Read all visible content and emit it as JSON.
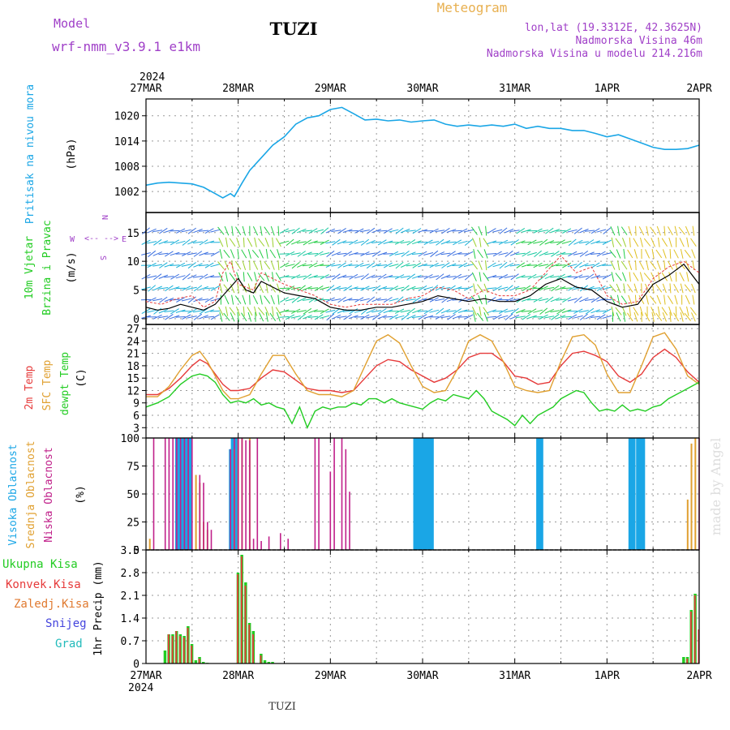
{
  "header": {
    "model_label": "Model",
    "model_name": "wrf-nmm_v3.9.1  e1km",
    "station": "TUZI",
    "meteogram_label": "Meteogram",
    "lonlat": "lon,lat (19.3312E, 42.3625N)",
    "elevation": "Nadmorska Visina 46m",
    "model_elevation": "Nadmorska Visina u modelu 214.216m",
    "footer_station": "TUZI",
    "credit": "made by Angel"
  },
  "colors": {
    "pressure": "#1aa6e6",
    "temp2m": "#e63a3a",
    "sfc_temp": "#e0a030",
    "dewpoint": "#22cc22",
    "cloud_high": "#1aa6e6",
    "cloud_mid": "#e0a030",
    "cloud_low": "#c0208a",
    "precip_total": "#22cc22",
    "precip_conv": "#e63a3a",
    "precip_frozen": "#e07a30",
    "snow": "#4444dd",
    "hail": "#22bbbb",
    "purple_text": "#a040c8",
    "orange_text": "#e8b050"
  },
  "time_axis": {
    "top_year": "2024",
    "bottom_year": "2024",
    "days": [
      "27MAR",
      "28MAR",
      "29MAR",
      "30MAR",
      "31MAR",
      "1APR",
      "2APR"
    ]
  },
  "chart_data": [
    {
      "type": "line",
      "ylabel_lines": [
        "Pritisak na nivou mora",
        "(hPa)"
      ],
      "ylim": [
        997,
        1024
      ],
      "yticks": [
        1002,
        1008,
        1014,
        1020
      ],
      "grid": true,
      "series": [
        {
          "x": [
            0,
            3,
            6,
            9,
            12,
            15,
            18,
            20,
            22,
            23,
            25,
            27,
            30,
            33,
            36,
            39,
            42,
            45,
            48,
            51,
            54,
            57,
            60,
            63,
            66,
            69,
            72,
            75,
            78,
            81,
            84,
            87,
            90,
            93,
            96,
            99,
            102,
            105,
            108,
            111,
            114,
            117,
            120,
            123,
            126,
            129,
            132,
            135,
            138,
            141,
            144
          ],
          "values": [
            1003.5,
            1004,
            1004.2,
            1004,
            1003.8,
            1003,
            1001.5,
            1000.5,
            1001.5,
            1000.8,
            1004,
            1007,
            1010,
            1013,
            1015,
            1018,
            1019.5,
            1020,
            1021.5,
            1022,
            1020.5,
            1019,
            1019.2,
            1018.8,
            1019,
            1018.5,
            1018.8,
            1019,
            1018,
            1017.5,
            1017.8,
            1017.5,
            1017.8,
            1017.5,
            1018,
            1017,
            1017.5,
            1017,
            1017,
            1016.5,
            1016.5,
            1015.8,
            1015,
            1015.5,
            1014.5,
            1013.5,
            1012.5,
            1012,
            1012,
            1012.2,
            1013
          ]
        }
      ]
    },
    {
      "type": "line",
      "ylabel_lines": [
        "10m Vjetar",
        "Brzina i Pravac",
        "(m/s)"
      ],
      "compass_labels": [
        "N",
        "W",
        "E",
        "S",
        "<--",
        "-->"
      ],
      "ylim": [
        -1,
        18.5
      ],
      "yticks": [
        0,
        5,
        10,
        15
      ],
      "grid": true,
      "series": [
        {
          "x": [
            0,
            3,
            6,
            9,
            12,
            15,
            18,
            20,
            22,
            24,
            26,
            28,
            30,
            33,
            36,
            40,
            44,
            48,
            52,
            56,
            60,
            64,
            68,
            72,
            76,
            80,
            84,
            88,
            92,
            96,
            100,
            104,
            108,
            112,
            116,
            120,
            124,
            128,
            132,
            136,
            140,
            144
          ],
          "values": [
            2,
            1.5,
            1.8,
            2.5,
            2,
            1.5,
            2.5,
            4,
            5.5,
            7,
            5,
            4.5,
            6.5,
            5.5,
            4.5,
            4,
            3.5,
            2,
            1.5,
            1.5,
            2,
            2,
            2.5,
            3,
            4,
            3.5,
            3,
            3.5,
            3,
            3,
            4,
            6,
            7,
            5.5,
            5,
            3,
            2,
            2.5,
            6,
            7.5,
            9.5,
            6
          ]
        },
        {
          "x": [
            0,
            4,
            8,
            12,
            15,
            18,
            20,
            22,
            24,
            26,
            28,
            30,
            33,
            36,
            40,
            44,
            48,
            52,
            56,
            60,
            64,
            68,
            72,
            76,
            80,
            84,
            88,
            92,
            96,
            100,
            104,
            108,
            112,
            116,
            120,
            124,
            128,
            132,
            136,
            140,
            144
          ],
          "values": [
            3,
            2.5,
            3.5,
            4,
            2,
            3,
            8,
            10,
            6,
            5.5,
            5,
            8,
            7,
            6,
            5,
            4,
            2.5,
            2,
            2.5,
            2.5,
            2.5,
            3.5,
            4,
            5.5,
            5,
            3.5,
            5,
            4,
            4,
            5,
            8,
            11,
            8,
            9,
            4,
            2.5,
            3,
            7,
            9,
            10,
            8
          ]
        }
      ]
    },
    {
      "type": "line",
      "ylabel_lines": [
        "2m Temp",
        "SFC Temp",
        "dewpt Temp",
        "(C)"
      ],
      "ylim": [
        0.5,
        28
      ],
      "yticks": [
        3,
        6,
        9,
        12,
        15,
        18,
        21,
        24,
        27
      ],
      "grid": true,
      "series": [
        {
          "name": "2m Temp",
          "x": [
            0,
            3,
            6,
            9,
            12,
            14,
            16,
            18,
            20,
            22,
            24,
            27,
            30,
            33,
            36,
            39,
            42,
            45,
            48,
            51,
            54,
            57,
            60,
            63,
            66,
            69,
            72,
            75,
            78,
            81,
            84,
            87,
            90,
            93,
            96,
            99,
            102,
            105,
            108,
            111,
            114,
            117,
            120,
            123,
            126,
            129,
            132,
            135,
            138,
            141,
            144
          ],
          "values": [
            11,
            11,
            12.5,
            15,
            18,
            19.5,
            18.5,
            16,
            13.5,
            12,
            12,
            12.5,
            15,
            17,
            16.5,
            14.5,
            12.5,
            12,
            12,
            11.5,
            12,
            15,
            18,
            19.5,
            19,
            17,
            15.5,
            14,
            15,
            17,
            20,
            21,
            21,
            19,
            15.5,
            15,
            13.5,
            14,
            18,
            21,
            21.5,
            20.5,
            19,
            15.5,
            14,
            16,
            20,
            22,
            20,
            16.5,
            14
          ]
        },
        {
          "name": "SFC Temp",
          "x": [
            0,
            3,
            6,
            9,
            12,
            14,
            16,
            18,
            20,
            22,
            24,
            27,
            30,
            33,
            36,
            39,
            42,
            45,
            48,
            51,
            54,
            57,
            60,
            63,
            66,
            69,
            72,
            75,
            78,
            81,
            84,
            87,
            90,
            93,
            96,
            99,
            102,
            105,
            108,
            111,
            114,
            117,
            120,
            123,
            126,
            129,
            132,
            135,
            138,
            141,
            144
          ],
          "values": [
            10.5,
            10.5,
            13,
            17,
            20.5,
            21.5,
            19,
            15.5,
            12,
            10,
            10,
            11,
            16,
            20.5,
            20.5,
            16,
            12,
            11,
            11,
            10.5,
            12,
            18,
            24,
            25.5,
            23.5,
            18,
            13,
            11.5,
            12,
            17,
            24,
            25.5,
            24,
            19,
            13,
            12,
            11.5,
            12,
            19,
            25,
            25.5,
            23,
            16,
            11.5,
            11.5,
            18,
            25,
            26,
            22,
            15.5,
            13.5
          ]
        },
        {
          "name": "dewpt Temp",
          "x": [
            0,
            3,
            6,
            9,
            12,
            14,
            16,
            18,
            20,
            22,
            24,
            26,
            28,
            30,
            32,
            34,
            36,
            38,
            40,
            42,
            44,
            46,
            48,
            50,
            52,
            54,
            56,
            58,
            60,
            62,
            64,
            66,
            68,
            70,
            72,
            74,
            76,
            78,
            80,
            82,
            84,
            86,
            88,
            90,
            92,
            94,
            96,
            98,
            100,
            102,
            104,
            106,
            108,
            110,
            112,
            114,
            116,
            118,
            120,
            122,
            124,
            126,
            128,
            130,
            132,
            134,
            136,
            138,
            140,
            142,
            144
          ],
          "values": [
            8,
            9,
            10.5,
            13.5,
            15.5,
            16,
            15.5,
            14,
            11,
            9,
            9.5,
            9,
            10,
            8.5,
            9,
            8,
            7.5,
            4,
            8,
            3,
            7,
            8,
            7.5,
            8,
            8,
            9,
            8.5,
            10,
            10,
            9,
            10,
            9,
            8.5,
            8,
            7.5,
            9,
            10,
            9.5,
            11,
            10.5,
            10,
            12,
            10,
            7,
            6,
            5,
            3.5,
            6,
            4,
            6,
            7,
            8,
            10,
            11,
            12,
            11.5,
            9,
            7,
            7.5,
            7,
            8.5,
            7,
            7.5,
            7,
            8,
            8.5,
            10,
            11,
            12,
            13,
            14
          ]
        }
      ]
    },
    {
      "type": "bar",
      "ylabel_lines": [
        "Visoka Oblacnost",
        "Srednja Oblacnost",
        "Niska Oblacnost",
        "(%)"
      ],
      "ylim": [
        0,
        100
      ],
      "yticks": [
        0,
        25,
        50,
        75,
        100
      ],
      "grid": true,
      "series": [
        {
          "name": "Visoka Oblacnost",
          "x": [
            8,
            8.5,
            9,
            9.5,
            10,
            10.5,
            11,
            11.5,
            22,
            22.5,
            23,
            23.5,
            70,
            70.5,
            71,
            71.5,
            72,
            72.5,
            73,
            73.5,
            74,
            74.5,
            102,
            102.5,
            103,
            126,
            126.5,
            127,
            128,
            128.5,
            129,
            129.5
          ],
          "values": [
            100,
            100,
            100,
            100,
            100,
            100,
            100,
            100,
            90,
            100,
            100,
            100,
            100,
            100,
            100,
            100,
            100,
            100,
            100,
            100,
            100,
            100,
            100,
            100,
            100,
            100,
            100,
            100,
            100,
            100,
            100,
            100
          ]
        },
        {
          "name": "Srednja Oblacnost",
          "x": [
            1,
            13,
            14,
            15,
            16,
            23,
            24,
            25,
            27,
            141,
            142,
            143
          ],
          "values": [
            10,
            67,
            60,
            25,
            18,
            90,
            100,
            100,
            100,
            45,
            95,
            100
          ]
        },
        {
          "name": "Niska Oblacnost",
          "x": [
            2,
            5,
            6,
            7,
            8,
            9,
            10,
            11,
            12,
            14,
            15,
            16,
            17,
            22,
            23,
            24,
            25,
            26,
            27,
            28,
            29,
            30,
            32,
            35,
            37,
            44,
            45,
            48,
            49,
            51,
            52,
            53,
            144
          ],
          "values": [
            100,
            100,
            100,
            100,
            100,
            100,
            100,
            100,
            100,
            67,
            60,
            25,
            18,
            90,
            100,
            100,
            100,
            98,
            98,
            10,
            100,
            8,
            12,
            15,
            10,
            100,
            100,
            70,
            100,
            100,
            90,
            52,
            100
          ]
        }
      ]
    },
    {
      "type": "bar",
      "ylabel_lines": [
        "1hr Precip (mm)"
      ],
      "legend": [
        "Ukupna Kisa",
        "Konvek.Kisa",
        "Zaledj.Kisa",
        "Snijeg",
        "Grad"
      ],
      "ylim": [
        0,
        3.5
      ],
      "yticks": [
        0,
        0.7,
        1.4,
        2.1,
        2.8,
        3.5
      ],
      "ytick_labels": [
        "0",
        "0.7",
        "1.4",
        "2.1",
        "2.8",
        "3.5"
      ],
      "grid": true,
      "series": [
        {
          "name": "Ukupna Kisa",
          "x": [
            5,
            6,
            7,
            8,
            9,
            10,
            11,
            12,
            13,
            14,
            15,
            16,
            24,
            25,
            26,
            27,
            28,
            30,
            31,
            32,
            33,
            140,
            141,
            142,
            143
          ],
          "values": [
            0.4,
            0.9,
            0.9,
            1,
            0.9,
            0.85,
            1.15,
            0.6,
            0.1,
            0.2,
            0.05,
            0.02,
            2.8,
            3.35,
            2.5,
            1.25,
            1,
            0.3,
            0.1,
            0.05,
            0.05,
            0.2,
            0.2,
            1.65,
            2.15
          ]
        },
        {
          "name": "Konvek.Kisa",
          "x": [
            6,
            7,
            8,
            9,
            10,
            11,
            12,
            14,
            24,
            25,
            26,
            27,
            28,
            30,
            141,
            142,
            143,
            144
          ],
          "values": [
            0.9,
            0.85,
            1,
            0.85,
            0.8,
            1.1,
            0.55,
            0.15,
            2.75,
            3.3,
            2.4,
            1.2,
            0.9,
            0.25,
            0.15,
            1.6,
            2.1,
            1.05
          ]
        }
      ]
    }
  ]
}
